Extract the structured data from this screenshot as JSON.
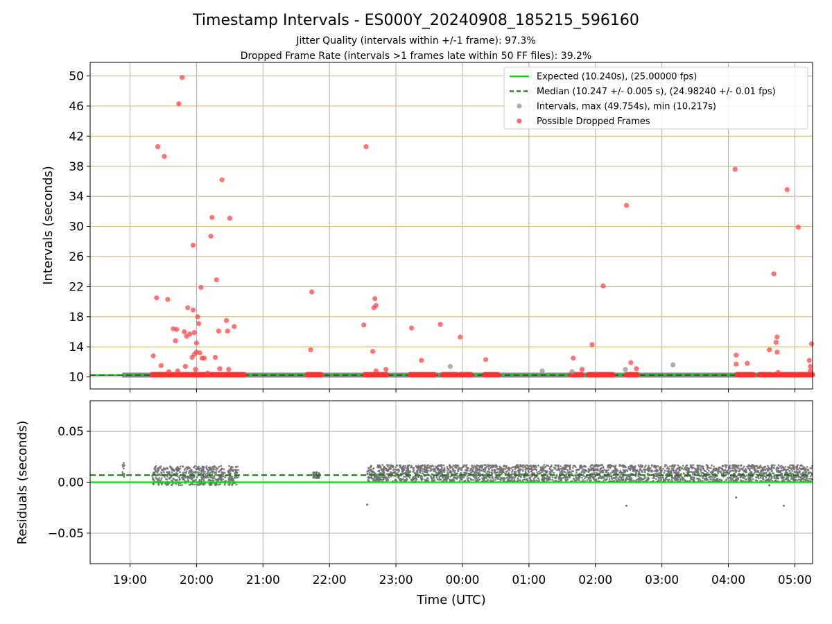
{
  "chart_data": [
    {
      "type": "scatter",
      "panel": "intervals",
      "title": "Timestamp Intervals - ES000Y_20240908_185215_596160",
      "subtitle_lines": [
        "Jitter Quality (intervals within +/-1 frame): 97.3%",
        "Dropped Frame Rate (intervals >1 frames late within 50 FF files): 39.2%"
      ],
      "xlabel": "Time (UTC)",
      "ylabel": "Intervals (seconds)",
      "xlim": [
        "18:24",
        "05:16"
      ],
      "ylim": [
        8.4,
        51.8
      ],
      "yticks": [
        10,
        14,
        18,
        22,
        26,
        30,
        34,
        38,
        42,
        46,
        50
      ],
      "grid": "on",
      "legend_position": "top-right",
      "legend": [
        {
          "label": "Expected (10.240s), (25.00000 fps)",
          "style": "solid-line",
          "color": "#00e000"
        },
        {
          "label": "Median (10.247 +/- 0.005 s), (24.98240 +/- 0.01 fps)",
          "style": "dashed-line",
          "color": "#007a00"
        },
        {
          "label": "Intervals, max (49.754s), min (10.217s)",
          "style": "dot",
          "color": "#9a9a9a"
        },
        {
          "label": "Possible Dropped Frames",
          "style": "dot",
          "color": "#ff4444"
        }
      ],
      "expected_interval": 10.24,
      "median_interval": 10.247,
      "baseline_segments": [
        [
          "18:53",
          "05:16"
        ]
      ],
      "dropped_clusters": [
        [
          "19:20",
          "20:43"
        ],
        [
          "21:40",
          "21:52"
        ],
        [
          "22:32",
          "22:52"
        ],
        [
          "23:13",
          "23:35"
        ],
        [
          "23:42",
          "23:56"
        ],
        [
          "23:58",
          "00:08"
        ],
        [
          "00:20",
          "00:32"
        ],
        [
          "01:38",
          "01:48"
        ],
        [
          "01:54",
          "02:16"
        ],
        [
          "02:28",
          "02:38"
        ],
        [
          "04:08",
          "04:23"
        ],
        [
          "04:28",
          "04:40"
        ],
        [
          "04:42",
          "05:16"
        ]
      ],
      "dropped_points": [
        [
          "19:21",
          12.8
        ],
        [
          "19:24",
          20.5
        ],
        [
          "19:25",
          40.6
        ],
        [
          "19:28",
          11.5
        ],
        [
          "19:31",
          39.3
        ],
        [
          "19:34",
          20.3
        ],
        [
          "19:35",
          10.7
        ],
        [
          "19:39",
          16.4
        ],
        [
          "19:41",
          14.8
        ],
        [
          "19:42",
          16.3
        ],
        [
          "19:43",
          10.8
        ],
        [
          "19:44",
          46.3
        ],
        [
          "19:47",
          49.8
        ],
        [
          "19:49",
          16.0
        ],
        [
          "19:50",
          11.4
        ],
        [
          "19:51",
          15.4
        ],
        [
          "19:52",
          19.2
        ],
        [
          "19:54",
          15.7
        ],
        [
          "19:56",
          12.6
        ],
        [
          "19:57",
          18.9
        ],
        [
          "19:57",
          27.5
        ],
        [
          "19:58",
          13.0
        ],
        [
          "19:58",
          15.9
        ],
        [
          "19:59",
          11.0
        ],
        [
          "20:00",
          14.5
        ],
        [
          "20:00",
          13.3
        ],
        [
          "20:01",
          18.0
        ],
        [
          "20:02",
          17.1
        ],
        [
          "20:03",
          13.2
        ],
        [
          "20:04",
          21.9
        ],
        [
          "20:05",
          12.5
        ],
        [
          "20:07",
          12.5
        ],
        [
          "20:10",
          10.5
        ],
        [
          "20:13",
          28.7
        ],
        [
          "20:14",
          31.2
        ],
        [
          "20:17",
          12.6
        ],
        [
          "20:18",
          22.9
        ],
        [
          "20:20",
          16.1
        ],
        [
          "20:21",
          11.1
        ],
        [
          "20:23",
          36.2
        ],
        [
          "20:27",
          17.5
        ],
        [
          "20:28",
          16.1
        ],
        [
          "20:29",
          11.0
        ],
        [
          "20:30",
          31.1
        ],
        [
          "20:34",
          16.7
        ],
        [
          "21:43",
          13.6
        ],
        [
          "21:44",
          21.3
        ],
        [
          "22:31",
          16.9
        ],
        [
          "22:33",
          40.6
        ],
        [
          "22:39",
          13.4
        ],
        [
          "22:40",
          19.2
        ],
        [
          "22:41",
          20.4
        ],
        [
          "22:42",
          19.5
        ],
        [
          "22:42",
          10.8
        ],
        [
          "22:51",
          11.0
        ],
        [
          "23:14",
          16.5
        ],
        [
          "23:23",
          12.2
        ],
        [
          "23:40",
          17.0
        ],
        [
          "23:58",
          15.3
        ],
        [
          "00:21",
          12.3
        ],
        [
          "01:40",
          12.5
        ],
        [
          "01:48",
          11.0
        ],
        [
          "01:57",
          14.3
        ],
        [
          "02:07",
          22.1
        ],
        [
          "02:28",
          32.8
        ],
        [
          "02:32",
          11.9
        ],
        [
          "02:37",
          11.1
        ],
        [
          "04:06",
          37.6
        ],
        [
          "04:07",
          12.9
        ],
        [
          "04:07",
          11.7
        ],
        [
          "04:17",
          11.8
        ],
        [
          "04:37",
          13.6
        ],
        [
          "04:41",
          23.7
        ],
        [
          "04:43",
          14.6
        ],
        [
          "04:44",
          15.3
        ],
        [
          "04:44",
          13.3
        ],
        [
          "04:45",
          10.6
        ],
        [
          "04:53",
          34.9
        ],
        [
          "05:03",
          29.9
        ],
        [
          "05:13",
          12.2
        ],
        [
          "05:14",
          11.4
        ],
        [
          "05:14",
          10.8
        ],
        [
          "05:15",
          14.4
        ]
      ],
      "interval_points": [
        [
          "23:49",
          11.4
        ],
        [
          "01:12",
          10.8
        ],
        [
          "01:39",
          10.7
        ],
        [
          "02:27",
          11.0
        ],
        [
          "03:10",
          11.6
        ]
      ]
    },
    {
      "type": "scatter",
      "panel": "residuals",
      "xlabel": "Time (UTC)",
      "ylabel": "Residuals (seconds)",
      "xlim": [
        "18:24",
        "05:16"
      ],
      "ylim": [
        -0.08,
        0.08
      ],
      "yticks": [
        0.05,
        0.0,
        -0.05
      ],
      "ytick_labels": [
        "0.05",
        "0.00",
        "−0.05"
      ],
      "xticks": [
        "19:00",
        "20:00",
        "21:00",
        "22:00",
        "23:00",
        "00:00",
        "01:00",
        "02:00",
        "03:00",
        "04:00",
        "05:00"
      ],
      "grid": "on",
      "zero_line": 0.0,
      "median_line": 0.007,
      "residual_bands": [
        {
          "from": "18:53",
          "to": "18:55",
          "min": 0.002,
          "max": 0.019
        },
        {
          "from": "19:20",
          "to": "20:38",
          "min": -0.003,
          "max": 0.016
        },
        {
          "from": "21:45",
          "to": "21:51",
          "min": 0.004,
          "max": 0.01
        },
        {
          "from": "22:34",
          "to": "05:16",
          "min": 0.0,
          "max": 0.017
        }
      ],
      "outliers": [
        [
          "22:34",
          -0.022
        ],
        [
          "02:28",
          -0.023
        ],
        [
          "04:07",
          -0.015
        ],
        [
          "04:50",
          -0.023
        ],
        [
          "04:37",
          -0.003
        ]
      ]
    }
  ]
}
